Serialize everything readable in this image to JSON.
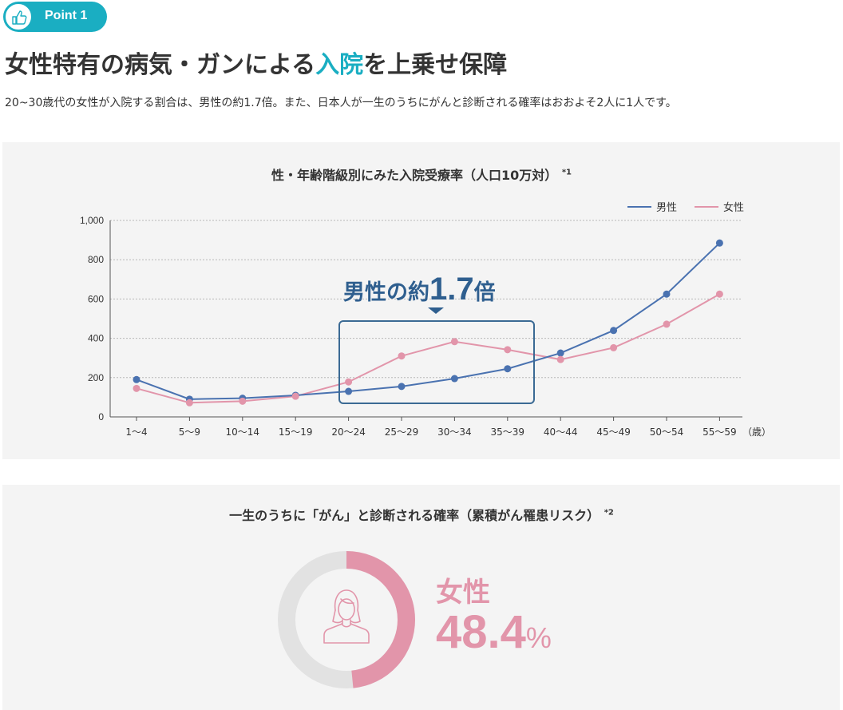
{
  "badge": {
    "label": "Point 1",
    "icon": "thumbs-up-icon"
  },
  "header": {
    "title_before": "女性特有の病気・ガンによる",
    "title_highlight": "入院",
    "title_after": "を上乗せ保障",
    "intro": "20~30歳代の女性が入院する割合は、男性の約1.7倍。また、日本人が一生のうちにがんと診断される確率はおおよそ2人に1人です。"
  },
  "colors": {
    "accent": "#1aaec2",
    "male": "#4a72b0",
    "female": "#e295aa",
    "callout": "#2f5f8f",
    "panel": "#f4f4f4"
  },
  "chart_data": [
    {
      "type": "line",
      "title": "性・年齢階級別にみた入院受療率（人口10万対）",
      "title_note": "*1",
      "categories": [
        "1〜4",
        "5〜9",
        "10〜14",
        "15〜19",
        "20〜24",
        "25〜29",
        "30〜34",
        "35〜39",
        "40〜44",
        "45〜49",
        "50〜54",
        "55〜59"
      ],
      "x_unit": "（歳）",
      "series": [
        {
          "name": "男性",
          "color": "#4a72b0",
          "values": [
            190,
            90,
            95,
            110,
            130,
            155,
            195,
            245,
            325,
            440,
            625,
            885
          ]
        },
        {
          "name": "女性",
          "color": "#e295aa",
          "values": [
            145,
            72,
            80,
            105,
            178,
            310,
            383,
            342,
            292,
            352,
            472,
            625
          ]
        }
      ],
      "yticks": [
        "0",
        "200",
        "400",
        "600",
        "800",
        "1,000"
      ],
      "ylim": [
        0,
        1000
      ],
      "grid": "horizontal dotted",
      "legend": "top-right",
      "annotation": {
        "prefix": "男性の約",
        "number": "1.7",
        "suffix": "倍"
      }
    },
    {
      "type": "pie",
      "title": "一生のうちに「がん」と診断される確率（累積がん罹患リスク）",
      "title_note": "*2",
      "label": "女性",
      "value": 48.4,
      "value_text": "48.4",
      "unit": "%",
      "icon": "woman-icon"
    }
  ]
}
